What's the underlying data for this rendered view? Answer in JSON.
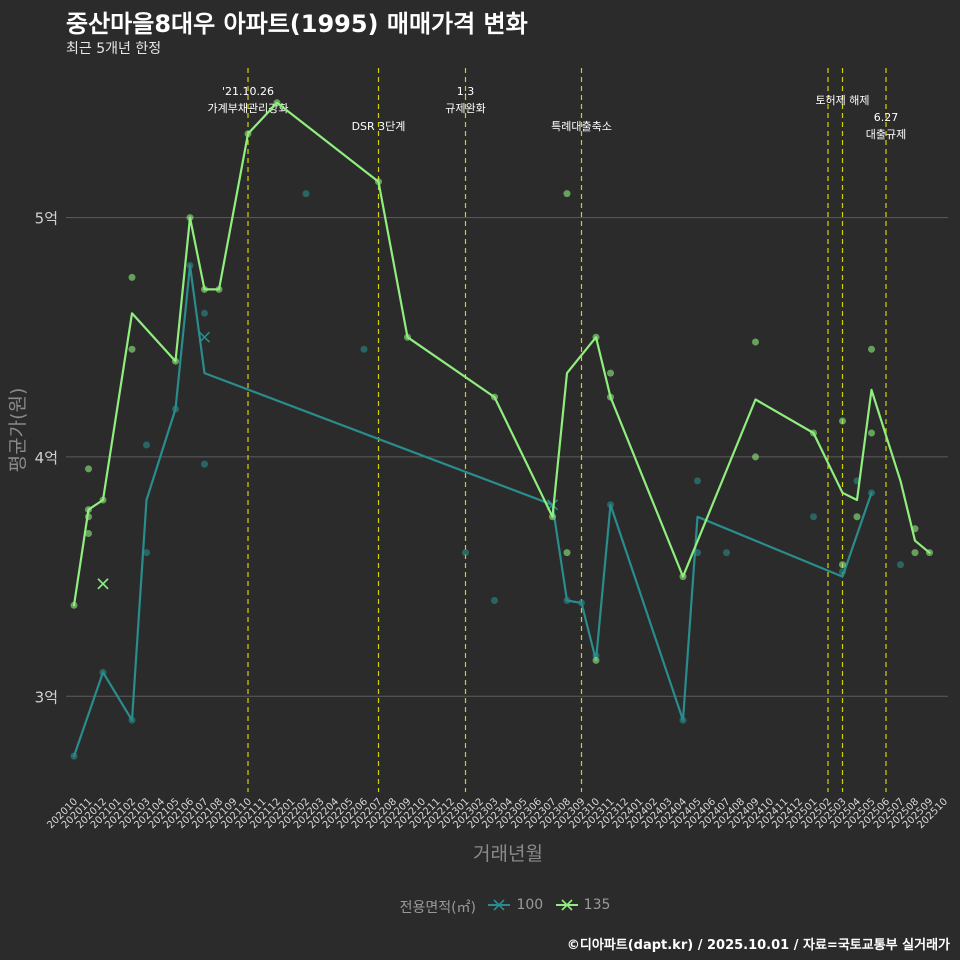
{
  "title": "중산마을8대우 아파트(1995) 매매가격 변화",
  "subtitle": "최근 5개년 한정",
  "caption": "©디아파트(dapt.kr) / 2025.10.01 / 자료=국토교통부 실거래가",
  "colors": {
    "background": "#2b2b2b",
    "grid": "#5c5c5c",
    "series_100": "#2a8c8c",
    "series_135": "#90ee7e",
    "event_line": "#d4d400"
  },
  "legend": {
    "title": "전용면적(㎡)",
    "items": [
      {
        "label": "100",
        "color": "#2a8c8c"
      },
      {
        "label": "135",
        "color": "#90ee7e"
      }
    ]
  },
  "chart_data": {
    "type": "line",
    "title": "중산마을8대우 아파트(1995) 매매가격 변화",
    "xlabel": "거래년월",
    "ylabel": "평균가(원)",
    "ylim": [
      2.6,
      5.65
    ],
    "yticks": [
      {
        "value": 3,
        "label": "3억"
      },
      {
        "value": 4,
        "label": "4억"
      },
      {
        "value": 5,
        "label": "5억"
      }
    ],
    "x_start": "202010",
    "x_end": "202510",
    "categories": [
      "202010",
      "202011",
      "202012",
      "202101",
      "202102",
      "202103",
      "202104",
      "202105",
      "202106",
      "202107",
      "202108",
      "202109",
      "202110",
      "202111",
      "202112",
      "202201",
      "202202",
      "202203",
      "202204",
      "202205",
      "202206",
      "202207",
      "202208",
      "202209",
      "202210",
      "202211",
      "202212",
      "202301",
      "202302",
      "202303",
      "202304",
      "202305",
      "202306",
      "202307",
      "202308",
      "202309",
      "202310",
      "202311",
      "202312",
      "202401",
      "202402",
      "202403",
      "202404",
      "202405",
      "202406",
      "202407",
      "202408",
      "202409",
      "202410",
      "202411",
      "202412",
      "202501",
      "202502",
      "202503",
      "202504",
      "202505",
      "202506",
      "202507",
      "202508",
      "202509",
      "202510"
    ],
    "series": [
      {
        "name": "100",
        "line": [
          [
            0,
            2.75
          ],
          [
            2,
            3.1
          ],
          [
            4,
            2.9
          ],
          [
            5,
            3.82
          ],
          [
            7,
            4.2
          ],
          [
            8,
            4.8
          ],
          [
            9,
            4.35
          ],
          [
            33,
            3.8
          ],
          [
            34,
            3.4
          ],
          [
            35,
            3.39
          ],
          [
            36,
            3.15
          ],
          [
            37,
            3.8
          ],
          [
            42,
            2.9
          ],
          [
            43,
            3.75
          ],
          [
            53,
            3.5
          ],
          [
            55,
            3.85
          ]
        ],
        "points": [
          [
            0,
            2.75
          ],
          [
            2,
            3.1
          ],
          [
            4,
            2.9
          ],
          [
            5,
            3.6
          ],
          [
            5,
            4.05
          ],
          [
            7,
            4.2
          ],
          [
            8,
            4.8
          ],
          [
            9,
            4.6
          ],
          [
            9,
            3.97
          ],
          [
            16,
            5.1
          ],
          [
            20,
            4.45
          ],
          [
            27,
            3.6
          ],
          [
            29,
            3.4
          ],
          [
            34,
            3.4
          ],
          [
            35,
            3.39
          ],
          [
            36,
            3.17
          ],
          [
            37,
            3.8
          ],
          [
            42,
            2.9
          ],
          [
            43,
            3.6
          ],
          [
            43,
            3.9
          ],
          [
            45,
            3.6
          ],
          [
            51,
            3.75
          ],
          [
            53,
            3.52
          ],
          [
            54,
            3.9
          ],
          [
            55,
            3.85
          ],
          [
            57,
            3.55
          ]
        ],
        "crosses": [
          [
            2,
            3.47
          ],
          [
            9,
            4.5
          ],
          [
            33,
            3.8
          ]
        ]
      },
      {
        "name": "135",
        "line": [
          [
            0,
            3.38
          ],
          [
            1,
            3.78
          ],
          [
            2,
            3.82
          ],
          [
            4,
            4.6
          ],
          [
            7,
            4.4
          ],
          [
            8,
            5.0
          ],
          [
            9,
            4.7
          ],
          [
            10,
            4.7
          ],
          [
            12,
            5.35
          ],
          [
            14,
            5.48
          ],
          [
            21,
            5.15
          ],
          [
            23,
            4.5
          ],
          [
            29,
            4.25
          ],
          [
            33,
            3.75
          ],
          [
            34,
            4.35
          ],
          [
            36,
            4.5
          ],
          [
            37,
            4.25
          ],
          [
            42,
            3.5
          ],
          [
            47,
            4.24
          ],
          [
            51,
            4.1
          ],
          [
            53,
            3.85
          ],
          [
            54,
            3.82
          ],
          [
            55,
            4.28
          ],
          [
            57,
            3.9
          ],
          [
            58,
            3.65
          ],
          [
            59,
            3.6
          ]
        ],
        "points": [
          [
            0,
            3.38
          ],
          [
            1,
            3.78
          ],
          [
            1,
            3.75
          ],
          [
            1,
            3.68
          ],
          [
            1,
            3.95
          ],
          [
            2,
            3.82
          ],
          [
            4,
            4.45
          ],
          [
            4,
            4.75
          ],
          [
            7,
            4.4
          ],
          [
            8,
            5.0
          ],
          [
            9,
            4.7
          ],
          [
            10,
            4.7
          ],
          [
            12,
            5.35
          ],
          [
            14,
            5.48
          ],
          [
            21,
            5.15
          ],
          [
            23,
            4.5
          ],
          [
            29,
            4.25
          ],
          [
            33,
            3.75
          ],
          [
            34,
            5.1
          ],
          [
            34,
            3.6
          ],
          [
            36,
            4.5
          ],
          [
            36,
            3.15
          ],
          [
            37,
            4.25
          ],
          [
            37,
            4.35
          ],
          [
            42,
            3.5
          ],
          [
            47,
            4.48
          ],
          [
            47,
            4.0
          ],
          [
            51,
            4.1
          ],
          [
            53,
            4.15
          ],
          [
            53,
            3.55
          ],
          [
            54,
            3.75
          ],
          [
            55,
            4.45
          ],
          [
            55,
            4.1
          ],
          [
            58,
            3.6
          ],
          [
            58,
            3.7
          ],
          [
            59,
            3.6
          ]
        ],
        "crosses": [
          [
            2,
            3.47
          ]
        ]
      }
    ],
    "events": [
      {
        "x": 12.0,
        "lines": [
          "'21.10.26",
          "가계부채관리강화"
        ],
        "label_top": true
      },
      {
        "x": 21.0,
        "lines": [
          "DSR 3단계"
        ],
        "label_top": false
      },
      {
        "x": 27.0,
        "lines": [
          "1.3",
          "규제완화"
        ],
        "label_top": true
      },
      {
        "x": 35.0,
        "lines": [
          "특례대출축소"
        ],
        "label_top": false
      },
      {
        "x": 52.0,
        "lines": [],
        "label_top": true
      },
      {
        "x": 53.0,
        "lines": [
          "토허제 해제"
        ],
        "label_top": true
      },
      {
        "x": 56.0,
        "lines": [
          "6.27",
          "대출규제"
        ],
        "label_top": false
      }
    ]
  }
}
